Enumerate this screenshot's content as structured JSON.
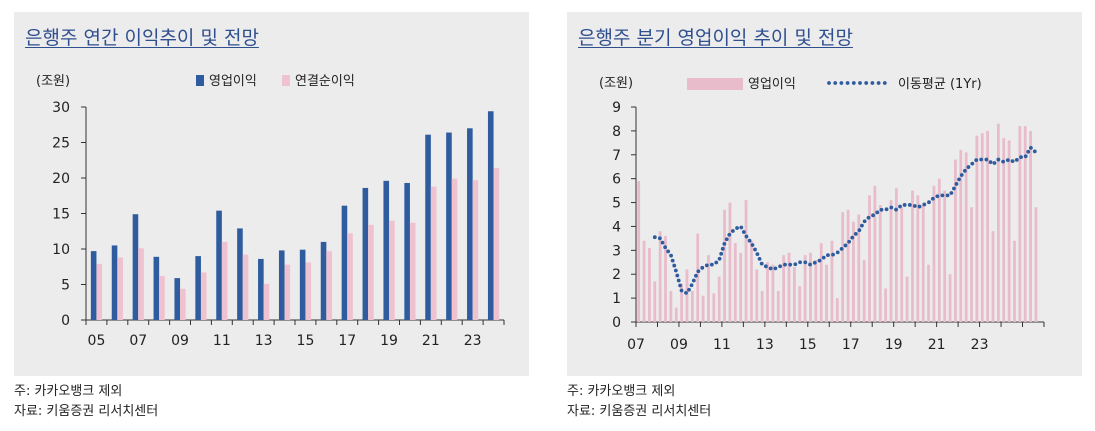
{
  "chart_data": [
    {
      "type": "bar",
      "title": "은행주 연간 이익추이 및 전망",
      "unit_label": "(조원)",
      "ylim": [
        0,
        30
      ],
      "yticks": [
        0,
        5,
        10,
        15,
        20,
        25,
        30
      ],
      "categories": [
        "05",
        "06",
        "07",
        "08",
        "09",
        "10",
        "11",
        "12",
        "13",
        "14",
        "15",
        "16",
        "17",
        "18",
        "19",
        "20",
        "21",
        "22",
        "23",
        "24"
      ],
      "xtick_labels": [
        "05",
        "07",
        "09",
        "11",
        "13",
        "15",
        "17",
        "19",
        "21",
        "23"
      ],
      "series": [
        {
          "name": "영업이익",
          "color": "#2e5c9e",
          "values": [
            9.7,
            10.5,
            14.9,
            8.9,
            5.9,
            9.0,
            15.4,
            12.9,
            8.6,
            9.8,
            9.9,
            11.0,
            16.1,
            18.6,
            19.6,
            19.3,
            26.1,
            26.4,
            27.0,
            29.4
          ]
        },
        {
          "name": "연결순이익",
          "color": "#eec3cf",
          "values": [
            7.9,
            8.8,
            10.1,
            6.2,
            4.4,
            6.7,
            11.0,
            9.2,
            5.1,
            7.8,
            8.1,
            9.7,
            12.2,
            13.4,
            14.0,
            13.7,
            18.8,
            19.9,
            19.7,
            21.4
          ]
        }
      ],
      "grid": false,
      "legend": "top"
    },
    {
      "type": "bar",
      "title": "은행주 분기 영업이익 추이 및 전망",
      "unit_label": "(조원)",
      "ylim": [
        0,
        9
      ],
      "yticks": [
        0,
        1,
        2,
        3,
        4,
        5,
        6,
        7,
        8,
        9
      ],
      "xtick_labels": [
        "07",
        "09",
        "11",
        "13",
        "15",
        "17",
        "19",
        "21",
        "23"
      ],
      "x_start_year": 2007,
      "quarters_per_year": 4,
      "series": [
        {
          "name": "영업이익",
          "type": "bar",
          "color": "#e8bccb",
          "values": [
            5.9,
            3.4,
            3.1,
            1.7,
            3.8,
            3.6,
            1.3,
            0.6,
            1.6,
            2.2,
            1.3,
            3.7,
            1.1,
            2.8,
            1.2,
            1.9,
            4.7,
            5.0,
            3.3,
            2.9,
            5.1,
            3.4,
            2.2,
            1.3,
            2.5,
            2.4,
            1.3,
            2.8,
            2.9,
            2.3,
            1.5,
            2.8,
            2.9,
            2.6,
            3.3,
            2.4,
            3.4,
            1.0,
            4.6,
            4.7,
            4.2,
            4.5,
            2.6,
            5.3,
            5.7,
            4.9,
            1.4,
            5.1,
            5.6,
            4.8,
            1.9,
            5.5,
            5.3,
            4.9,
            2.4,
            5.7,
            6.0,
            5.5,
            2.0,
            6.8,
            7.2,
            7.1,
            4.8,
            7.8,
            7.9,
            8.0,
            3.8,
            8.3,
            7.7,
            7.6,
            3.4,
            8.2,
            8.2,
            8.0,
            4.8
          ]
        },
        {
          "name": "이동평균 (1Yr)",
          "type": "dotted-line",
          "color": "#2e5c9e",
          "values": [
            null,
            null,
            null,
            3.55,
            3.5,
            3.1,
            2.8,
            2.1,
            1.3,
            1.2,
            1.6,
            2.1,
            2.3,
            2.4,
            2.4,
            2.6,
            3.3,
            3.7,
            3.9,
            4.0,
            3.6,
            3.3,
            2.9,
            2.4,
            2.3,
            2.2,
            2.3,
            2.4,
            2.4,
            2.4,
            2.5,
            2.5,
            2.4,
            2.5,
            2.6,
            2.8,
            2.8,
            2.9,
            3.1,
            3.3,
            3.6,
            3.8,
            4.2,
            4.4,
            4.5,
            4.7,
            4.7,
            4.8,
            4.7,
            4.9,
            4.9,
            4.9,
            4.8,
            4.9,
            5.0,
            5.2,
            5.3,
            5.3,
            5.3,
            5.7,
            6.1,
            6.4,
            6.6,
            6.8,
            6.8,
            6.8,
            6.6,
            6.8,
            6.7,
            6.8,
            6.7,
            6.9,
            6.9,
            7.3,
            7.1
          ]
        }
      ],
      "grid": false,
      "legend": "top"
    }
  ],
  "notes": {
    "left": [
      "주: 카카오뱅크 제외",
      "자료: 키움증권 리서치센터"
    ],
    "right": [
      "주: 카카오뱅크 제외",
      "자료: 키움증권 리서치센터"
    ]
  }
}
